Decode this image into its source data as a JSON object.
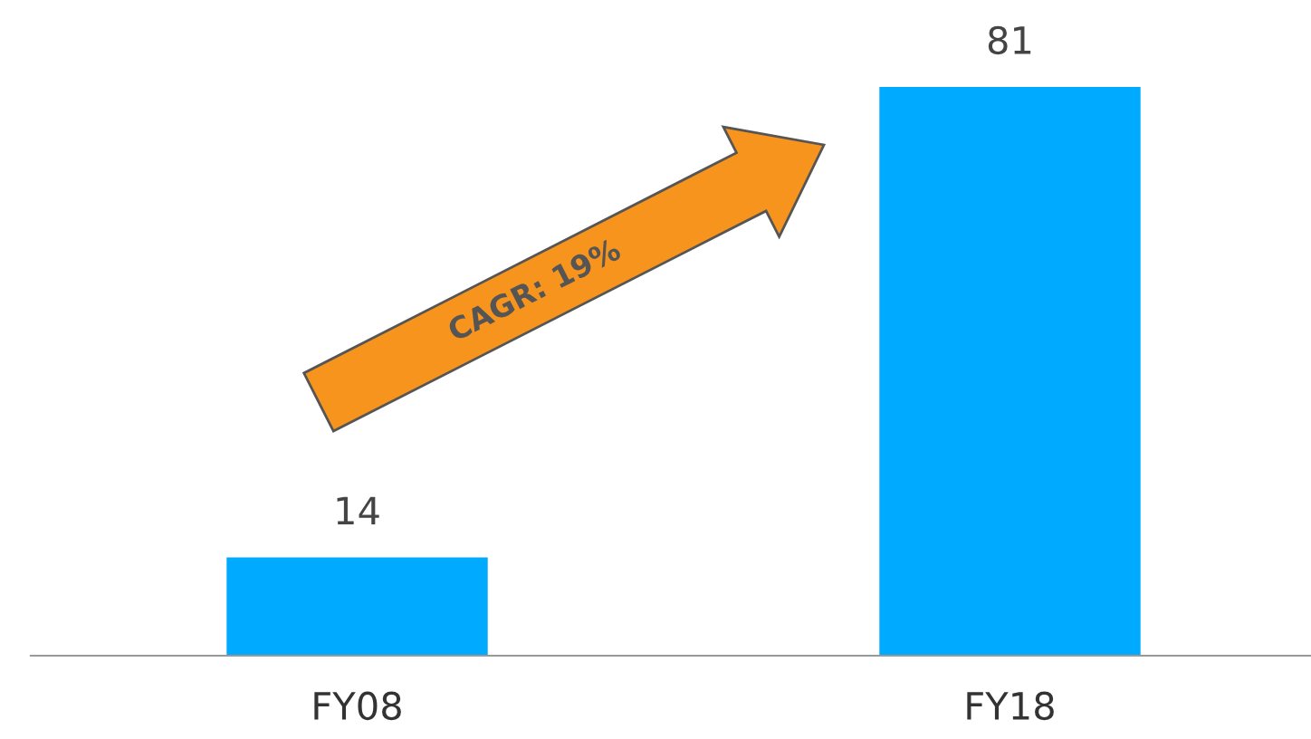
{
  "chart_data": {
    "type": "bar",
    "categories": [
      "FY08",
      "FY18"
    ],
    "values": [
      14,
      81
    ],
    "color": "#00aaff",
    "data_labels": true,
    "annotations": [
      "CAGR: 19%"
    ],
    "grid": false,
    "legend": false
  }
}
